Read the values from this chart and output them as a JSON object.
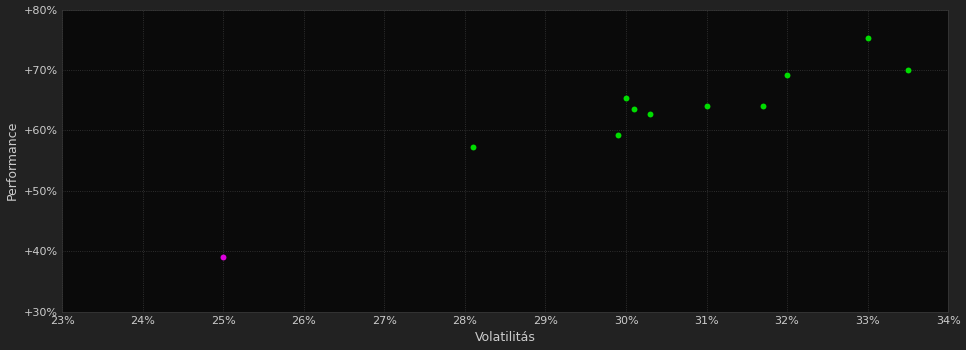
{
  "background_color": "#222222",
  "plot_bg_color": "#0a0a0a",
  "grid_color": "#3a3a3a",
  "text_color": "#cccccc",
  "xlabel": "Volatilitás",
  "ylabel": "Performance",
  "xlim": [
    0.23,
    0.34
  ],
  "ylim": [
    0.3,
    0.8
  ],
  "xticks": [
    0.23,
    0.24,
    0.25,
    0.26,
    0.27,
    0.28,
    0.29,
    0.3,
    0.31,
    0.32,
    0.33,
    0.34
  ],
  "yticks": [
    0.3,
    0.4,
    0.5,
    0.6,
    0.7,
    0.8
  ],
  "ytick_labels": [
    "+30%",
    "+40%",
    "+50%",
    "+60%",
    "+70%",
    "+80%"
  ],
  "xtick_labels": [
    "23%",
    "24%",
    "25%",
    "26%",
    "27%",
    "28%",
    "29%",
    "30%",
    "31%",
    "32%",
    "33%",
    "34%"
  ],
  "green_points": [
    [
      0.281,
      0.573
    ],
    [
      0.299,
      0.592
    ],
    [
      0.3,
      0.653
    ],
    [
      0.301,
      0.636
    ],
    [
      0.303,
      0.627
    ],
    [
      0.31,
      0.64
    ],
    [
      0.317,
      0.64
    ],
    [
      0.32,
      0.692
    ],
    [
      0.33,
      0.753
    ],
    [
      0.335,
      0.7
    ]
  ],
  "magenta_points": [
    [
      0.25,
      0.39
    ]
  ],
  "green_color": "#00dd00",
  "magenta_color": "#dd00dd",
  "marker_size": 18
}
